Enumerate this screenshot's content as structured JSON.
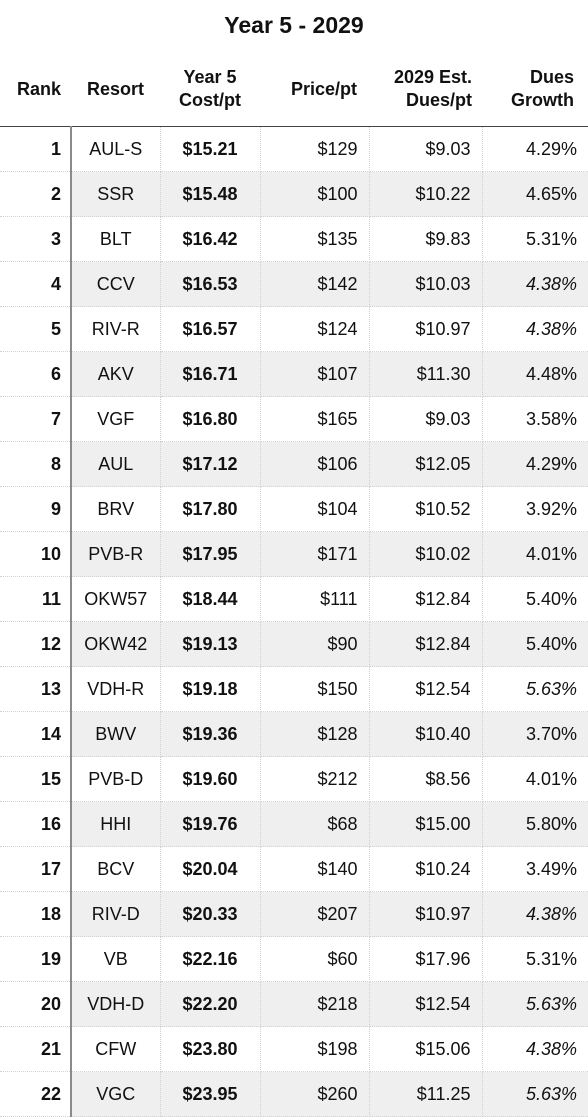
{
  "title": "Year 5 - 2029",
  "columns": {
    "rank": "Rank",
    "resort": "Resort",
    "cost_line1": "Year 5",
    "cost_line2": "Cost/pt",
    "price": "Price/pt",
    "dues_line1": "2029 Est.",
    "dues_line2": "Dues/pt",
    "growth_line1": "Dues",
    "growth_line2": "Growth"
  },
  "rows": [
    {
      "rank": "1",
      "resort": "AUL-S",
      "cost": "$15.21",
      "price": "$129",
      "dues": "$9.03",
      "growth": "4.29%",
      "growth_italic": false
    },
    {
      "rank": "2",
      "resort": "SSR",
      "cost": "$15.48",
      "price": "$100",
      "dues": "$10.22",
      "growth": "4.65%",
      "growth_italic": false
    },
    {
      "rank": "3",
      "resort": "BLT",
      "cost": "$16.42",
      "price": "$135",
      "dues": "$9.83",
      "growth": "5.31%",
      "growth_italic": false
    },
    {
      "rank": "4",
      "resort": "CCV",
      "cost": "$16.53",
      "price": "$142",
      "dues": "$10.03",
      "growth": "4.38%",
      "growth_italic": true
    },
    {
      "rank": "5",
      "resort": "RIV-R",
      "cost": "$16.57",
      "price": "$124",
      "dues": "$10.97",
      "growth": "4.38%",
      "growth_italic": true
    },
    {
      "rank": "6",
      "resort": "AKV",
      "cost": "$16.71",
      "price": "$107",
      "dues": "$11.30",
      "growth": "4.48%",
      "growth_italic": false
    },
    {
      "rank": "7",
      "resort": "VGF",
      "cost": "$16.80",
      "price": "$165",
      "dues": "$9.03",
      "growth": "3.58%",
      "growth_italic": false
    },
    {
      "rank": "8",
      "resort": "AUL",
      "cost": "$17.12",
      "price": "$106",
      "dues": "$12.05",
      "growth": "4.29%",
      "growth_italic": false
    },
    {
      "rank": "9",
      "resort": "BRV",
      "cost": "$17.80",
      "price": "$104",
      "dues": "$10.52",
      "growth": "3.92%",
      "growth_italic": false
    },
    {
      "rank": "10",
      "resort": "PVB-R",
      "cost": "$17.95",
      "price": "$171",
      "dues": "$10.02",
      "growth": "4.01%",
      "growth_italic": false
    },
    {
      "rank": "11",
      "resort": "OKW57",
      "cost": "$18.44",
      "price": "$111",
      "dues": "$12.84",
      "growth": "5.40%",
      "growth_italic": false
    },
    {
      "rank": "12",
      "resort": "OKW42",
      "cost": "$19.13",
      "price": "$90",
      "dues": "$12.84",
      "growth": "5.40%",
      "growth_italic": false
    },
    {
      "rank": "13",
      "resort": "VDH-R",
      "cost": "$19.18",
      "price": "$150",
      "dues": "$12.54",
      "growth": "5.63%",
      "growth_italic": true
    },
    {
      "rank": "14",
      "resort": "BWV",
      "cost": "$19.36",
      "price": "$128",
      "dues": "$10.40",
      "growth": "3.70%",
      "growth_italic": false
    },
    {
      "rank": "15",
      "resort": "PVB-D",
      "cost": "$19.60",
      "price": "$212",
      "dues": "$8.56",
      "growth": "4.01%",
      "growth_italic": false
    },
    {
      "rank": "16",
      "resort": "HHI",
      "cost": "$19.76",
      "price": "$68",
      "dues": "$15.00",
      "growth": "5.80%",
      "growth_italic": false
    },
    {
      "rank": "17",
      "resort": "BCV",
      "cost": "$20.04",
      "price": "$140",
      "dues": "$10.24",
      "growth": "3.49%",
      "growth_italic": false
    },
    {
      "rank": "18",
      "resort": "RIV-D",
      "cost": "$20.33",
      "price": "$207",
      "dues": "$10.97",
      "growth": "4.38%",
      "growth_italic": true
    },
    {
      "rank": "19",
      "resort": "VB",
      "cost": "$22.16",
      "price": "$60",
      "dues": "$17.96",
      "growth": "5.31%",
      "growth_italic": false
    },
    {
      "rank": "20",
      "resort": "VDH-D",
      "cost": "$22.20",
      "price": "$218",
      "dues": "$12.54",
      "growth": "5.63%",
      "growth_italic": true
    },
    {
      "rank": "21",
      "resort": "CFW",
      "cost": "$23.80",
      "price": "$198",
      "dues": "$15.06",
      "growth": "4.38%",
      "growth_italic": true
    },
    {
      "rank": "22",
      "resort": "VGC",
      "cost": "$23.95",
      "price": "$260",
      "dues": "$11.25",
      "growth": "5.63%",
      "growth_italic": true
    }
  ]
}
